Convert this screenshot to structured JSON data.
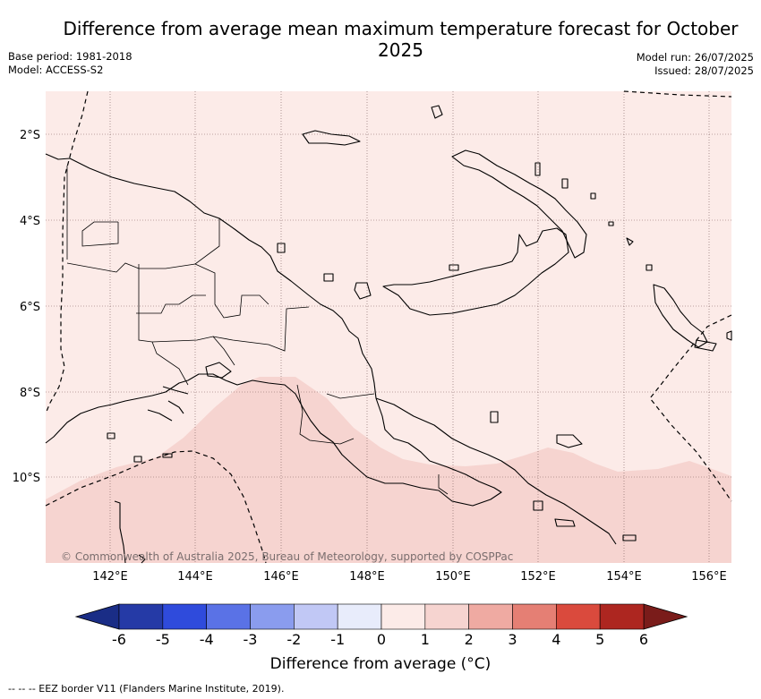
{
  "title": "Difference from average mean maximum temperature forecast for October 2025",
  "meta": {
    "base_period": "Base period: 1981-2018",
    "model": "Model: ACCESS-S2",
    "model_run": "Model run: 26/07/2025",
    "issued": "Issued: 28/07/2025"
  },
  "map": {
    "lat_labels": [
      "2°S",
      "4°S",
      "6°S",
      "8°S",
      "10°S"
    ],
    "lon_labels": [
      "142°E",
      "144°E",
      "146°E",
      "148°E",
      "150°E",
      "152°E",
      "154°E",
      "156°E"
    ],
    "copyright": "© Commonwealth of Australia 2025, Bureau of Meteorology, supported by COSPPac",
    "colors": {
      "anomaly_0_1": "#fcebe8",
      "anomaly_1_2": "#f6d4d0",
      "coastline": "#000000",
      "gridline": "#7a5a5a"
    }
  },
  "colorbar": {
    "title": "Difference from average (°C)",
    "tick_labels": [
      "-6",
      "-5",
      "-4",
      "-3",
      "-2",
      "-1",
      "0",
      "1",
      "2",
      "3",
      "4",
      "5",
      "6"
    ],
    "colors": [
      "#253aa6",
      "#2f4bdc",
      "#5a72e6",
      "#8a9cee",
      "#c1c8f5",
      "#e8ecfb",
      "#fcebe8",
      "#f6d4d0",
      "#efaaa2",
      "#e57f74",
      "#da4a3d",
      "#ad2620"
    ],
    "under_color": "#1a2d86",
    "over_color": "#7a1c1a"
  },
  "footer": "-- -- -- EEZ border V11 (Flanders Marine Institute, 2019)."
}
